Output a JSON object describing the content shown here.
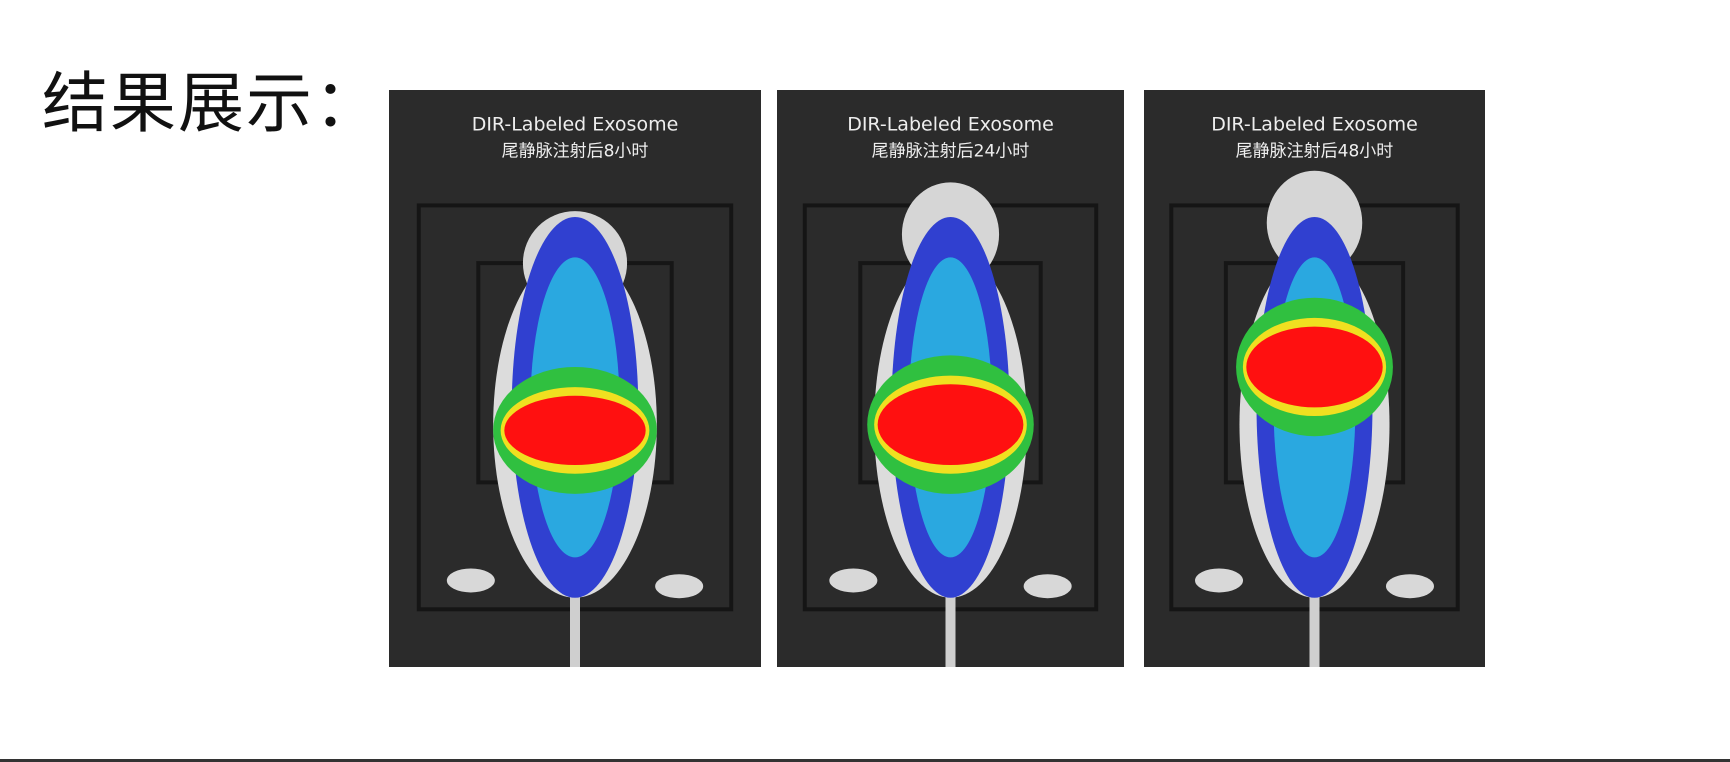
{
  "title": "结果展示：",
  "panels": [
    {
      "label": "DIR-Labeled Exosome",
      "caption": "尾静脉注射后8小时"
    },
    {
      "label": "DIR-Labeled Exosome",
      "caption": "尾静脉注射后24小时"
    },
    {
      "label": "DIR-Labeled Exosome",
      "caption": "尾静脉注射后48小时"
    }
  ]
}
